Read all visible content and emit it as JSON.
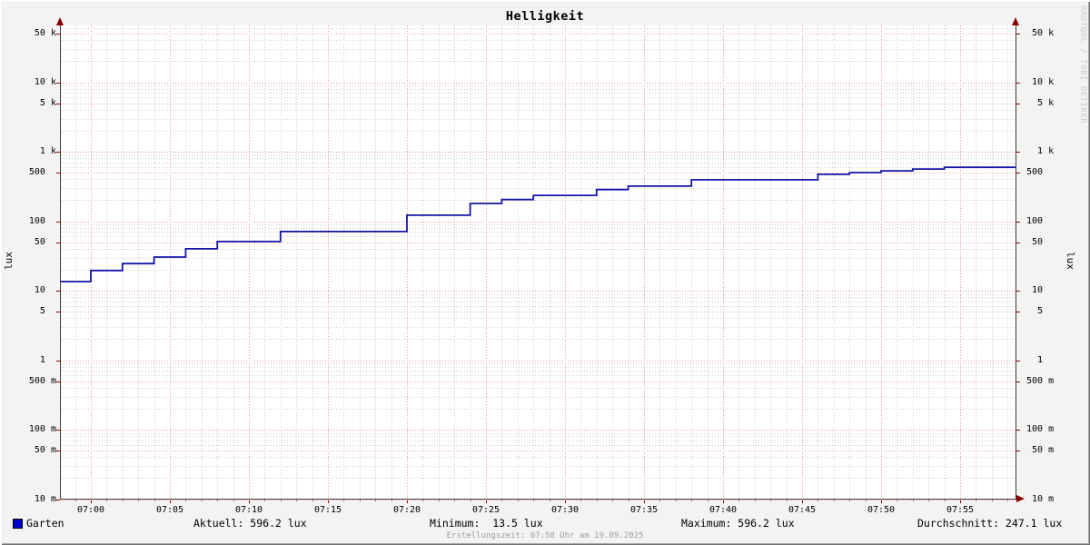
{
  "title": "Helligkeit",
  "watermark": "RRDTOOL / TOBI OETIKER",
  "footer": "Erstellungszeit: 07:58 Uhr am 19.09.2025",
  "colors": {
    "line": "#1414a8",
    "legend_square": "#0000cd",
    "major_grid": "#f09a98",
    "minor_grid": "#cbcbcb",
    "arrow": "#8b0000",
    "axis": "#3d3d3d",
    "major_tick": "#8b0000",
    "minor_tick": "#8a8a8a",
    "background": "#f3f3f2",
    "plot_background": "#ffffff",
    "watermark_text": "#c9c9c9",
    "footer_text": "#9e9e9e"
  },
  "legend": {
    "series_label": "Garten",
    "aktuell": "Aktuell: 596.2 lux",
    "minimum": "Minimum:  13.5 lux",
    "maximum": "Maximum: 596.2 lux",
    "durchschnitt": "Durchschnitt: 247.1 lux"
  },
  "chart_data": {
    "type": "line",
    "line_style": "step-after",
    "title": "Helligkeit",
    "ylabel": "lux",
    "y_scale": "log",
    "y_range": [
      0.01,
      60000
    ],
    "x_range": [
      "06:58",
      "07:58"
    ],
    "x_major_interval_minutes": 5,
    "x_minor_interval_minutes": 1,
    "grid": true,
    "x_tick_labels": [
      "07:00",
      "07:05",
      "07:10",
      "07:15",
      "07:20",
      "07:25",
      "07:30",
      "07:35",
      "07:40",
      "07:45",
      "07:50",
      "07:55"
    ],
    "y_major_ticks": [
      {
        "value": 50000,
        "label": " 50 k"
      },
      {
        "value": 10000,
        "label": " 10 k"
      },
      {
        "value": 5000,
        "label": "  5 k"
      },
      {
        "value": 1000,
        "label": "  1 k"
      },
      {
        "value": 500,
        "label": "500  "
      },
      {
        "value": 100,
        "label": "100  "
      },
      {
        "value": 50,
        "label": " 50  "
      },
      {
        "value": 10,
        "label": " 10  "
      },
      {
        "value": 5,
        "label": "  5  "
      },
      {
        "value": 1,
        "label": "  1  "
      },
      {
        "value": 0.5,
        "label": "500 m"
      },
      {
        "value": 0.1,
        "label": "100 m"
      },
      {
        "value": 0.05,
        "label": " 50 m"
      },
      {
        "value": 0.01,
        "label": " 10 m"
      }
    ],
    "series": [
      {
        "name": "Garten",
        "color": "#1414a8",
        "points": [
          {
            "time": "06:58",
            "lux": 13.5
          },
          {
            "time": "07:00",
            "lux": 19.5
          },
          {
            "time": "07:02",
            "lux": 24.5
          },
          {
            "time": "07:04",
            "lux": 30.5
          },
          {
            "time": "07:06",
            "lux": 40
          },
          {
            "time": "07:08",
            "lux": 51
          },
          {
            "time": "07:12",
            "lux": 71
          },
          {
            "time": "07:20",
            "lux": 122
          },
          {
            "time": "07:24",
            "lux": 180
          },
          {
            "time": "07:26",
            "lux": 205
          },
          {
            "time": "07:28",
            "lux": 235
          },
          {
            "time": "07:32",
            "lux": 285
          },
          {
            "time": "07:34",
            "lux": 320
          },
          {
            "time": "07:38",
            "lux": 394
          },
          {
            "time": "07:46",
            "lux": 472
          },
          {
            "time": "07:48",
            "lux": 500
          },
          {
            "time": "07:50",
            "lux": 530
          },
          {
            "time": "07:52",
            "lux": 563
          },
          {
            "time": "07:54",
            "lux": 596.2
          }
        ]
      }
    ],
    "stats": {
      "aktuell_lux": 596.2,
      "minimum_lux": 13.5,
      "maximum_lux": 596.2,
      "durchschnitt_lux": 247.1
    }
  }
}
